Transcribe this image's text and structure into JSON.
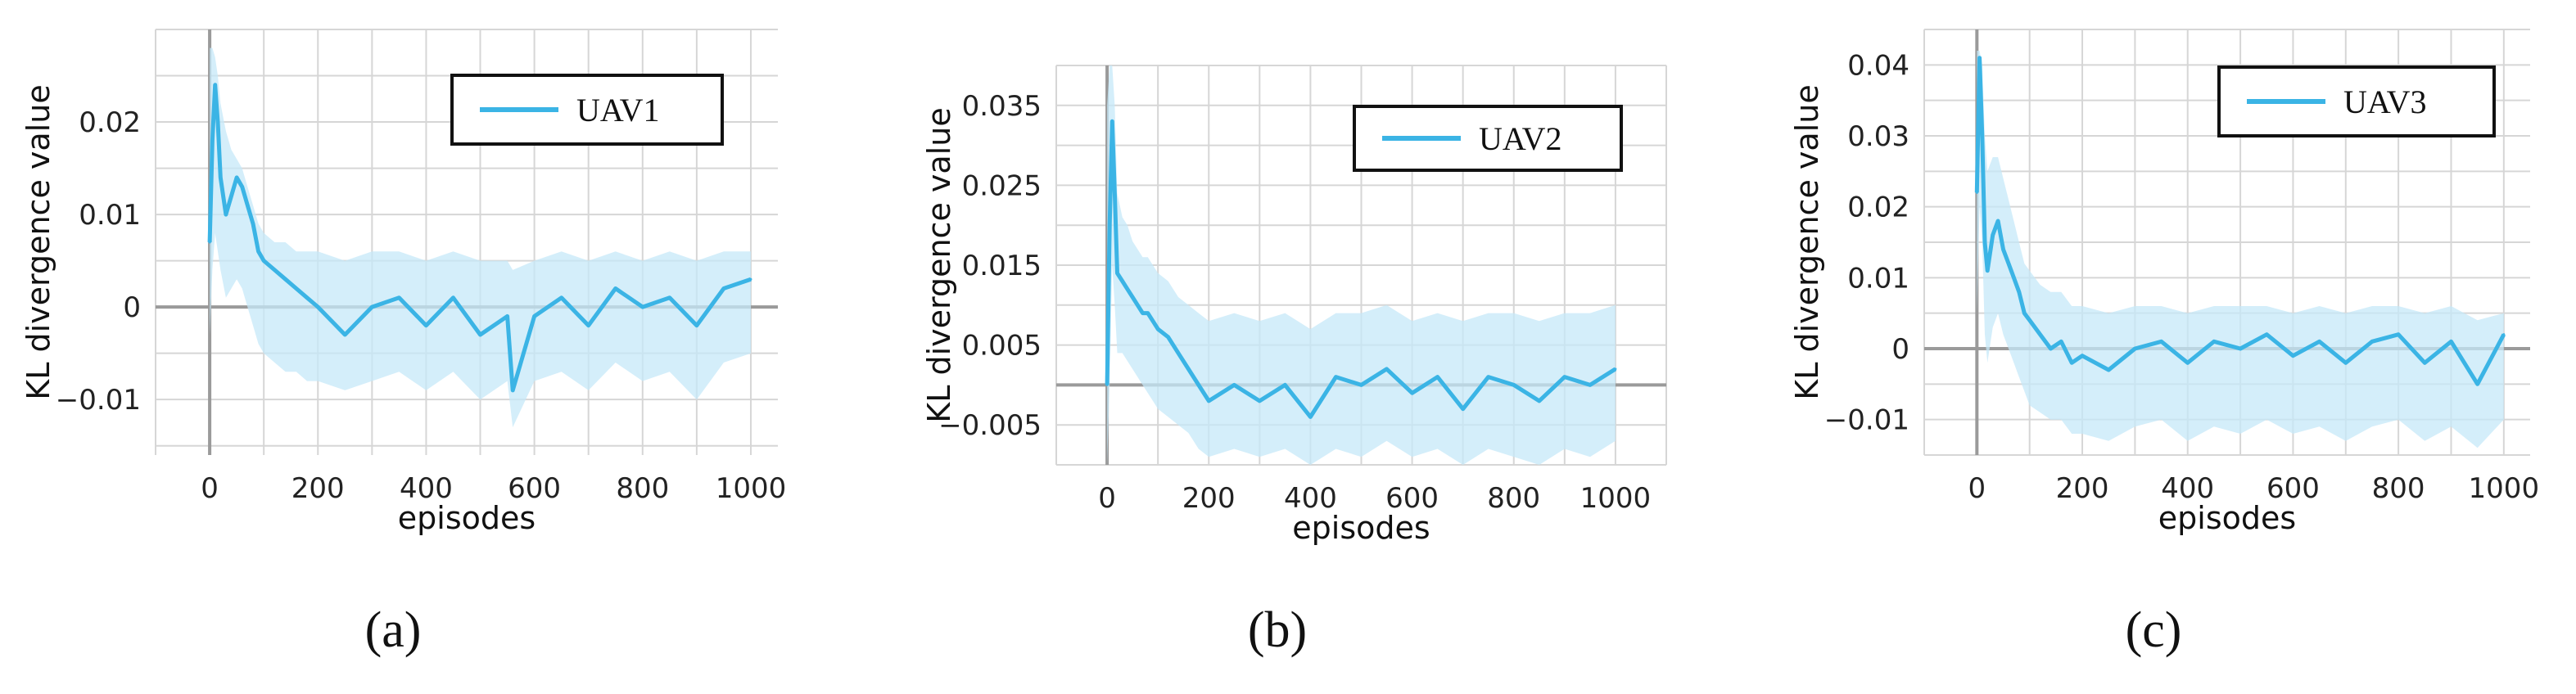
{
  "colors": {
    "line": "#3bb4e5",
    "band": "#c5e8f8",
    "grid": "#d6d6d6",
    "zero": "#9a9a9a"
  },
  "chart_data": [
    {
      "type": "line",
      "panel_label": "(a)",
      "xlabel": "episodes",
      "ylabel": "KL divergence value",
      "xlim": [
        -100,
        1050
      ],
      "ylim": [
        -0.016,
        0.03
      ],
      "x_ticks": [
        0,
        200,
        400,
        600,
        800,
        1000
      ],
      "y_ticks": [
        -0.01,
        0,
        0.01,
        0.02
      ],
      "y_tick_labels": [
        "−0.01",
        "0",
        "0.01",
        "0.02"
      ],
      "grid": true,
      "legend": "top-right",
      "series": [
        {
          "name": "UAV1",
          "x": [
            0,
            5,
            10,
            15,
            20,
            30,
            40,
            50,
            60,
            70,
            80,
            90,
            100,
            120,
            140,
            160,
            180,
            200,
            250,
            300,
            350,
            400,
            450,
            500,
            550,
            560,
            600,
            650,
            700,
            750,
            800,
            850,
            900,
            950,
            1000
          ],
          "y": [
            0.007,
            0.018,
            0.024,
            0.02,
            0.014,
            0.01,
            0.012,
            0.014,
            0.013,
            0.011,
            0.009,
            0.006,
            0.005,
            0.004,
            0.003,
            0.002,
            0.001,
            0.0,
            -0.003,
            0.0,
            0.001,
            -0.002,
            0.001,
            -0.003,
            -0.001,
            -0.009,
            -0.001,
            0.001,
            -0.002,
            0.002,
            0.0,
            0.001,
            -0.002,
            0.002,
            0.003
          ],
          "band_upper": [
            0.028,
            0.028,
            0.027,
            0.025,
            0.022,
            0.019,
            0.017,
            0.016,
            0.015,
            0.013,
            0.011,
            0.009,
            0.008,
            0.007,
            0.007,
            0.006,
            0.006,
            0.006,
            0.005,
            0.006,
            0.006,
            0.005,
            0.006,
            0.005,
            0.005,
            0.004,
            0.005,
            0.006,
            0.005,
            0.006,
            0.005,
            0.006,
            0.005,
            0.006,
            0.006
          ],
          "band_lower": [
            -0.003,
            0.004,
            0.008,
            0.006,
            0.004,
            0.001,
            0.002,
            0.003,
            0.002,
            0.0,
            -0.002,
            -0.004,
            -0.005,
            -0.006,
            -0.007,
            -0.007,
            -0.008,
            -0.008,
            -0.009,
            -0.008,
            -0.007,
            -0.009,
            -0.007,
            -0.01,
            -0.008,
            -0.013,
            -0.008,
            -0.007,
            -0.009,
            -0.006,
            -0.008,
            -0.007,
            -0.01,
            -0.006,
            -0.005
          ]
        }
      ]
    },
    {
      "type": "line",
      "panel_label": "(b)",
      "xlabel": "episodes",
      "ylabel": "KL divergence value",
      "xlim": [
        -100,
        1100
      ],
      "ylim": [
        -0.01,
        0.04
      ],
      "x_ticks": [
        0,
        200,
        400,
        600,
        800,
        1000
      ],
      "y_ticks": [
        -0.005,
        0.005,
        0.015,
        0.025,
        0.035
      ],
      "y_tick_labels": [
        "−0.005",
        "0.005",
        "0.015",
        "0.025",
        "0.035"
      ],
      "grid": true,
      "legend": "top-right",
      "series": [
        {
          "name": "UAV2",
          "x": [
            0,
            5,
            10,
            15,
            20,
            30,
            40,
            50,
            60,
            70,
            80,
            90,
            100,
            120,
            140,
            160,
            180,
            200,
            250,
            300,
            350,
            400,
            450,
            500,
            550,
            600,
            650,
            700,
            750,
            800,
            850,
            900,
            950,
            1000
          ],
          "y": [
            0.0,
            0.02,
            0.033,
            0.024,
            0.014,
            0.013,
            0.012,
            0.011,
            0.01,
            0.009,
            0.009,
            0.008,
            0.007,
            0.006,
            0.004,
            0.002,
            0.0,
            -0.002,
            0.0,
            -0.002,
            0.0,
            -0.004,
            0.001,
            0.0,
            0.002,
            -0.001,
            0.001,
            -0.003,
            0.001,
            0.0,
            -0.002,
            0.001,
            0.0,
            0.002
          ],
          "band_upper": [
            0.035,
            0.04,
            0.04,
            0.035,
            0.024,
            0.021,
            0.02,
            0.018,
            0.017,
            0.016,
            0.016,
            0.015,
            0.014,
            0.013,
            0.011,
            0.01,
            0.009,
            0.008,
            0.009,
            0.008,
            0.009,
            0.007,
            0.009,
            0.009,
            0.01,
            0.008,
            0.009,
            0.008,
            0.009,
            0.009,
            0.008,
            0.009,
            0.009,
            0.01
          ],
          "band_lower": [
            -0.01,
            0.0,
            0.015,
            0.01,
            0.004,
            0.004,
            0.003,
            0.002,
            0.001,
            0.0,
            -0.001,
            -0.002,
            -0.003,
            -0.004,
            -0.005,
            -0.006,
            -0.008,
            -0.009,
            -0.008,
            -0.009,
            -0.008,
            -0.01,
            -0.008,
            -0.009,
            -0.007,
            -0.009,
            -0.008,
            -0.01,
            -0.008,
            -0.009,
            -0.01,
            -0.008,
            -0.009,
            -0.007
          ]
        }
      ]
    },
    {
      "type": "line",
      "panel_label": "(c)",
      "xlabel": "episodes",
      "ylabel": "KL divergence value",
      "xlim": [
        -100,
        1050
      ],
      "ylim": [
        -0.015,
        0.045
      ],
      "x_ticks": [
        0,
        200,
        400,
        600,
        800,
        1000
      ],
      "y_ticks": [
        -0.01,
        0,
        0.01,
        0.02,
        0.03,
        0.04
      ],
      "y_tick_labels": [
        "−0.01",
        "0",
        "0.01",
        "0.02",
        "0.03",
        "0.04"
      ],
      "grid": true,
      "legend": "top-right",
      "series": [
        {
          "name": "UAV3",
          "x": [
            0,
            5,
            10,
            15,
            20,
            30,
            40,
            50,
            60,
            70,
            80,
            90,
            100,
            120,
            140,
            160,
            180,
            200,
            250,
            300,
            350,
            400,
            450,
            500,
            550,
            600,
            650,
            700,
            750,
            800,
            850,
            900,
            950,
            1000
          ],
          "y": [
            0.022,
            0.041,
            0.03,
            0.015,
            0.011,
            0.016,
            0.018,
            0.014,
            0.012,
            0.01,
            0.008,
            0.005,
            0.004,
            0.002,
            0.0,
            0.001,
            -0.002,
            -0.001,
            -0.003,
            0.0,
            0.001,
            -0.002,
            0.001,
            0.0,
            0.002,
            -0.001,
            0.001,
            -0.002,
            0.001,
            0.002,
            -0.002,
            0.001,
            -0.005,
            0.002
          ],
          "band_upper": [
            0.042,
            0.042,
            0.04,
            0.03,
            0.025,
            0.027,
            0.027,
            0.024,
            0.021,
            0.018,
            0.015,
            0.012,
            0.011,
            0.009,
            0.008,
            0.008,
            0.006,
            0.006,
            0.005,
            0.006,
            0.006,
            0.005,
            0.006,
            0.006,
            0.006,
            0.005,
            0.006,
            0.005,
            0.006,
            0.006,
            0.005,
            0.006,
            0.004,
            0.005
          ],
          "band_lower": [
            0.005,
            0.02,
            0.015,
            0.002,
            -0.002,
            0.003,
            0.005,
            0.002,
            0.0,
            -0.002,
            -0.004,
            -0.006,
            -0.008,
            -0.009,
            -0.01,
            -0.01,
            -0.012,
            -0.012,
            -0.013,
            -0.011,
            -0.01,
            -0.013,
            -0.011,
            -0.012,
            -0.01,
            -0.012,
            -0.011,
            -0.013,
            -0.011,
            -0.01,
            -0.013,
            -0.011,
            -0.014,
            -0.01
          ]
        }
      ]
    }
  ]
}
